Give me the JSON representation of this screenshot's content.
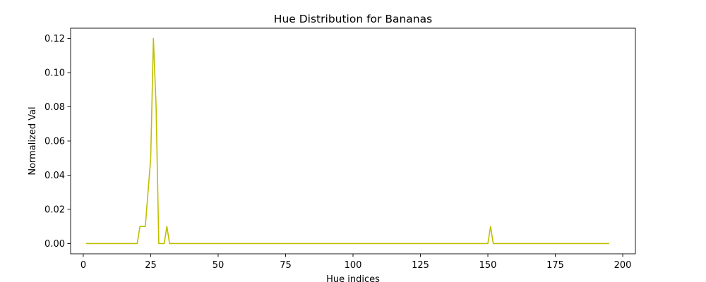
{
  "chart_data": {
    "type": "line",
    "title": "Hue Distribution for Bananas",
    "xlabel": "Hue indices",
    "ylabel": "Normalized Val",
    "xlim": [
      -4.7,
      204.7
    ],
    "ylim": [
      -0.006,
      0.126
    ],
    "xticks": [
      0,
      25,
      50,
      75,
      100,
      125,
      150,
      175,
      200
    ],
    "xtick_labels": [
      "0",
      "25",
      "50",
      "75",
      "100",
      "125",
      "150",
      "175",
      "200"
    ],
    "yticks": [
      0.0,
      0.02,
      0.04,
      0.06,
      0.08,
      0.1,
      0.12
    ],
    "ytick_labels": [
      "0.00",
      "0.02",
      "0.04",
      "0.06",
      "0.08",
      "0.10",
      "0.12"
    ],
    "grid": false,
    "legend": "none",
    "series": [
      {
        "color": "#bfbf00",
        "points": [
          [
            1,
            0.0
          ],
          [
            20,
            0.0
          ],
          [
            21,
            0.01
          ],
          [
            22,
            0.01
          ],
          [
            23,
            0.01
          ],
          [
            25,
            0.05
          ],
          [
            26,
            0.12
          ],
          [
            27,
            0.08
          ],
          [
            28,
            0.0
          ],
          [
            30,
            0.0
          ],
          [
            31,
            0.01
          ],
          [
            32,
            0.0
          ],
          [
            150,
            0.0
          ],
          [
            151,
            0.01
          ],
          [
            152,
            0.0
          ],
          [
            195,
            0.0
          ]
        ]
      }
    ]
  }
}
